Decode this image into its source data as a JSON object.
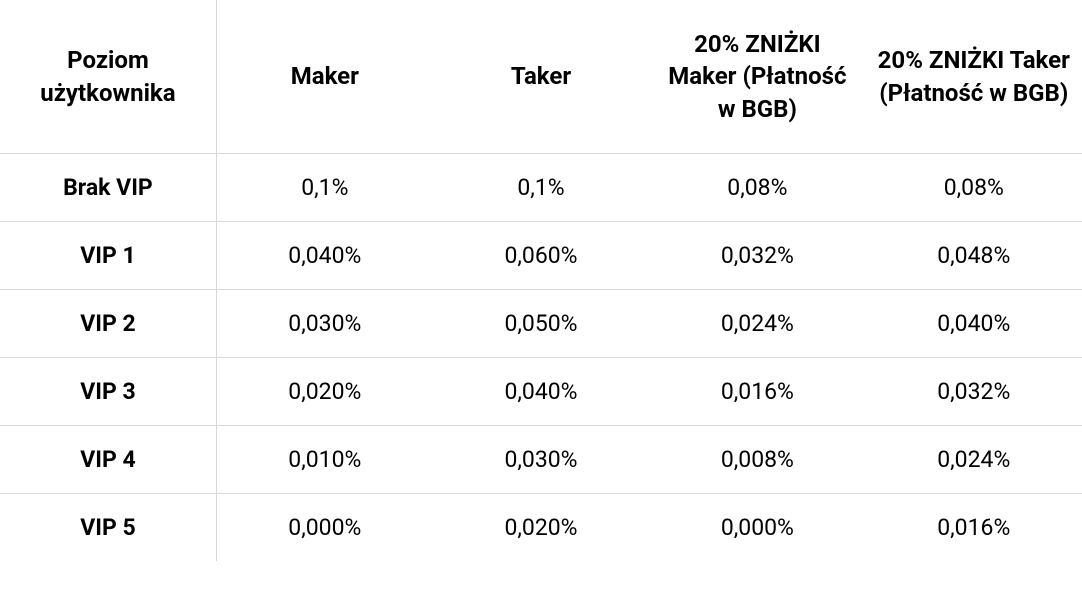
{
  "fee_table": {
    "type": "table",
    "background_color": "#ffffff",
    "border_color": "#d8d8d8",
    "text_color": "#000000",
    "header_font_weight": 700,
    "header_font_size_pt": 18,
    "cell_font_size_pt": 17,
    "level_column_font_weight": 700,
    "columns": [
      {
        "key": "level",
        "label": "Poziom użytkownika",
        "align": "center",
        "bold": true
      },
      {
        "key": "maker",
        "label": "Maker",
        "align": "center"
      },
      {
        "key": "taker",
        "label": "Taker",
        "align": "center"
      },
      {
        "key": "maker_bgb",
        "label": "20% ZNIŻKI Maker (Płatność w BGB)",
        "align": "center"
      },
      {
        "key": "taker_bgb",
        "label": "20% ZNIŻKI Taker (Płatność w BGB)",
        "align": "center"
      }
    ],
    "rows": [
      {
        "level": "Brak VIP",
        "maker": "0,1%",
        "taker": "0,1%",
        "maker_bgb": "0,08%",
        "taker_bgb": "0,08%"
      },
      {
        "level": "VIP 1",
        "maker": "0,040%",
        "taker": "0,060%",
        "maker_bgb": "0,032%",
        "taker_bgb": "0,048%"
      },
      {
        "level": "VIP 2",
        "maker": "0,030%",
        "taker": "0,050%",
        "maker_bgb": "0,024%",
        "taker_bgb": "0,040%"
      },
      {
        "level": "VIP 3",
        "maker": "0,020%",
        "taker": "0,040%",
        "maker_bgb": "0,016%",
        "taker_bgb": "0,032%"
      },
      {
        "level": "VIP 4",
        "maker": "0,010%",
        "taker": "0,030%",
        "maker_bgb": "0,008%",
        "taker_bgb": "0,024%"
      },
      {
        "level": "VIP 5",
        "maker": "0,000%",
        "taker": "0,020%",
        "maker_bgb": "0,000%",
        "taker_bgb": "0,016%"
      }
    ]
  }
}
